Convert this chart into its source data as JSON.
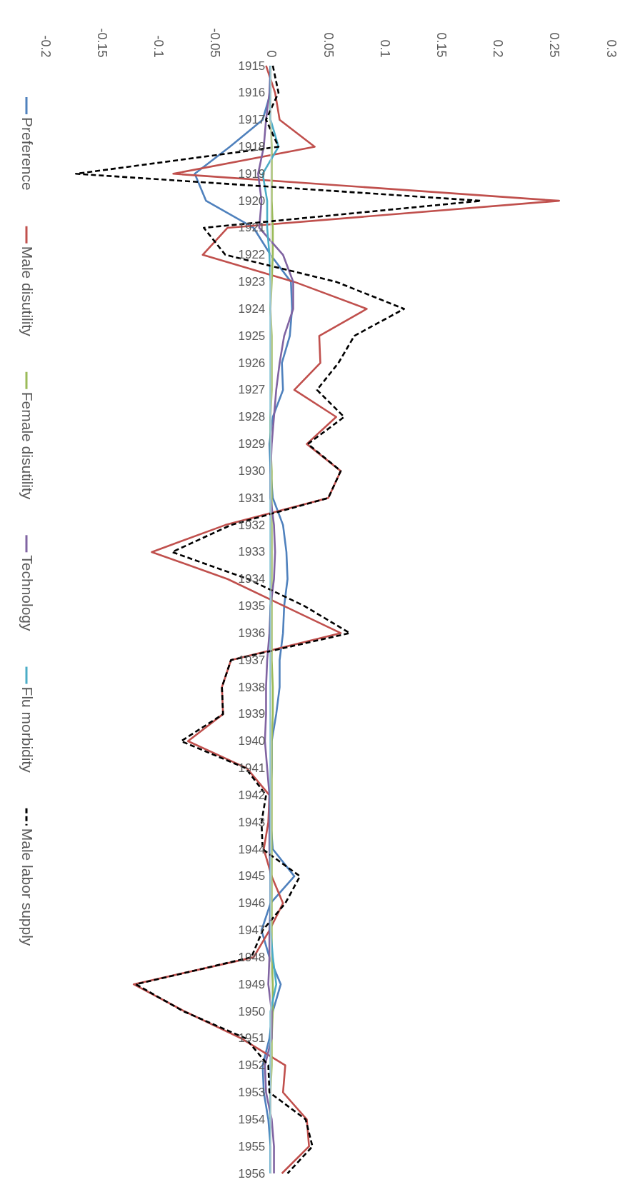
{
  "chart_data": {
    "type": "line",
    "categories": [
      "1915",
      "1916",
      "1917",
      "1918",
      "1919",
      "1920",
      "1921",
      "1922",
      "1923",
      "1924",
      "1925",
      "1926",
      "1927",
      "1928",
      "1929",
      "1930",
      "1931",
      "1932",
      "1933",
      "1934",
      "1935",
      "1936",
      "1937",
      "1938",
      "1939",
      "1940",
      "1941",
      "1942",
      "1943",
      "1944",
      "1945",
      "1946",
      "1947",
      "1948",
      "1949",
      "1950",
      "1951",
      "1952",
      "1953",
      "1954",
      "1955",
      "1956"
    ],
    "orientation": "horizontal",
    "xlim": [
      -0.2,
      0.3
    ],
    "xticks": [
      -0.2,
      -0.15,
      -0.1,
      -0.05,
      0,
      0.05,
      0.1,
      0.15,
      0.2,
      0.25,
      0.3
    ],
    "legend": "left",
    "marker": "none",
    "series": [
      {
        "name": "Preference",
        "color": "#4f81bd",
        "line_style": "solid",
        "values": [
          0,
          0,
          -0.007,
          -0.036,
          -0.067,
          -0.057,
          -0.015,
          0,
          0.018,
          0.019,
          0.017,
          0.01,
          0.011,
          0.002,
          -0.001,
          0,
          0.002,
          0.011,
          0.014,
          0.015,
          0.012,
          0.011,
          0.008,
          0.008,
          0.005,
          0.001,
          0.001,
          0,
          0,
          0.002,
          0.021,
          0,
          -0.008,
          -0.001,
          0.009,
          0.002,
          -0.001,
          -0.007,
          -0.006,
          -0.002,
          0,
          0
        ]
      },
      {
        "name": "Male disutility",
        "color": "#c0504d",
        "line_style": "solid",
        "values": [
          -0.004,
          0.004,
          0.008,
          0.039,
          -0.086,
          0.255,
          -0.038,
          -0.06,
          0.021,
          0.085,
          0.043,
          0.044,
          0.021,
          0.058,
          0.032,
          0.062,
          0.051,
          -0.04,
          -0.105,
          -0.038,
          0.012,
          0.062,
          -0.035,
          -0.043,
          -0.042,
          -0.073,
          -0.021,
          -0.001,
          -0.002,
          -0.006,
          0.001,
          0.011,
          -0.001,
          -0.015,
          -0.121,
          -0.076,
          -0.026,
          0.013,
          0.011,
          0.032,
          0.034,
          0.01
        ]
      },
      {
        "name": "Female disutility",
        "color": "#9bbb59",
        "line_style": "solid",
        "values": [
          0,
          0,
          0,
          0.001,
          0.001,
          0.001,
          0.002,
          0.002,
          0.001,
          0,
          0.001,
          0.001,
          0.001,
          0,
          0,
          0.001,
          0.001,
          0.001,
          0.001,
          0.001,
          0.001,
          0.001,
          0.001,
          0.002,
          0.002,
          0.001,
          0.001,
          0.001,
          0.001,
          0.001,
          0.001,
          0.001,
          0.001,
          0.001,
          0.002,
          0.002,
          0.001,
          0.001,
          0,
          0,
          null,
          null
        ]
      },
      {
        "name": "Technology",
        "color": "#8064a2",
        "line_style": "solid",
        "values": [
          0,
          -0.001,
          -0.004,
          -0.006,
          -0.011,
          -0.008,
          -0.01,
          0.011,
          0.02,
          0.02,
          0.012,
          0.008,
          0.005,
          0.003,
          0.001,
          0,
          0,
          0.003,
          0.004,
          0.003,
          0,
          -0.001,
          -0.003,
          -0.004,
          -0.004,
          -0.005,
          -0.003,
          -0.001,
          -0.001,
          -0.001,
          0,
          0,
          -0.001,
          -0.001,
          -0.002,
          0.001,
          0.001,
          -0.005,
          -0.004,
          0.001,
          0.003,
          0.003
        ]
      },
      {
        "name": "Flu morbidity",
        "color": "#4bacc6",
        "line_style": "solid",
        "values": [
          0,
          0,
          0,
          0.007,
          -0.007,
          -0.003,
          -0.003,
          -0.001,
          0,
          0,
          0,
          0,
          0,
          0,
          0,
          0,
          0,
          0,
          0,
          0,
          0,
          0,
          0,
          0,
          0,
          0,
          0,
          0,
          0,
          0,
          0,
          0,
          0,
          0.002,
          0.005,
          0,
          0,
          0,
          0,
          0,
          0,
          0
        ]
      },
      {
        "name": "Male labor supply",
        "color": "#000000",
        "line_style": "dashed",
        "values": [
          0.002,
          0.007,
          -0.004,
          0.007,
          -0.172,
          0.186,
          -0.059,
          -0.04,
          0.058,
          0.118,
          0.074,
          0.06,
          0.041,
          0.065,
          0.033,
          0.062,
          0.051,
          -0.035,
          -0.087,
          -0.02,
          0.03,
          0.07,
          -0.035,
          -0.043,
          -0.042,
          -0.079,
          -0.022,
          -0.004,
          -0.008,
          -0.007,
          0.026,
          0.013,
          -0.007,
          -0.017,
          -0.119,
          -0.077,
          -0.022,
          -0.002,
          -0.001,
          0.031,
          0.037,
          0.015
        ]
      }
    ]
  }
}
